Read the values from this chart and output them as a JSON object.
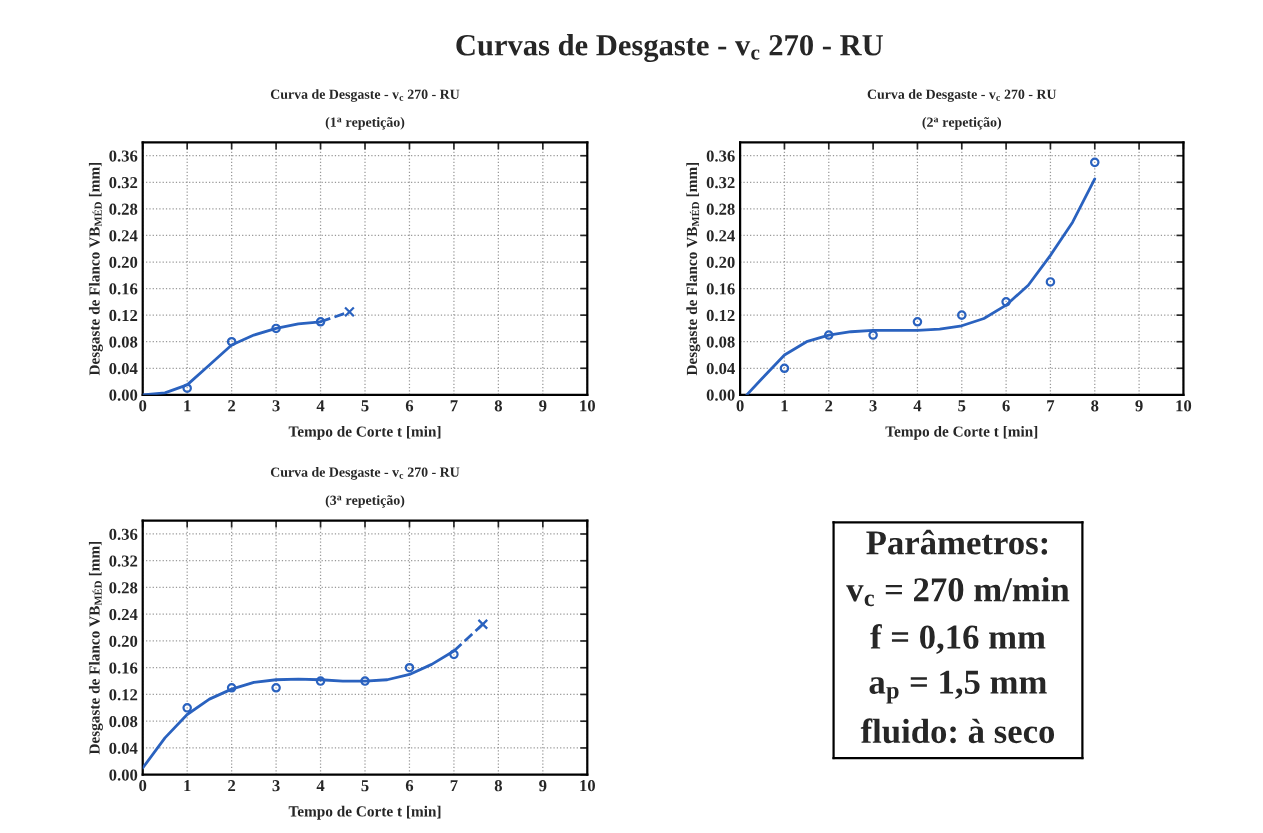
{
  "chart_data": [
    {
      "type": "scatter",
      "title": "Curva de Desgaste - v$_{c}$ 270 - RU",
      "subtitle": "(1$^{a}$ repetição)",
      "xlabel": "Tempo de Corte t [min]",
      "ylabel": "Desgaste de Flanco VB$_{MÉD}$ [mm]",
      "annotations": [
        "Curvas de Desgaste - v$_{c}$ 270 - RU"
      ],
      "xlim": [
        0,
        10
      ],
      "ylim": [
        0,
        0.38
      ],
      "xticks": [
        0,
        1,
        2,
        3,
        4,
        5,
        6,
        7,
        8,
        9,
        10
      ],
      "yticks": [
        {
          "value": 0,
          "label": "0.00"
        },
        {
          "value": 0.04,
          "label": "0.04"
        },
        {
          "value": 0.08,
          "label": "0.08"
        },
        {
          "value": 0.12,
          "label": "0.12"
        },
        {
          "value": 0.16,
          "label": "0.16"
        },
        {
          "value": 0.2,
          "label": "0.20"
        },
        {
          "value": 0.24,
          "label": "0.24"
        },
        {
          "value": 0.28,
          "label": "0.28"
        },
        {
          "value": 0.32,
          "label": "0.32"
        },
        {
          "value": 0.36,
          "label": "0.36"
        }
      ],
      "grid": true,
      "series": [
        {
          "type": "scatter",
          "color": "#2a62bf",
          "marker": "circle",
          "x": [
            1,
            2,
            3,
            4
          ],
          "values": [
            0.01,
            0.08,
            0.1,
            0.11
          ]
        },
        {
          "type": "line",
          "color": "#2a62bf",
          "marker": "none",
          "line_style": "solid",
          "x": [
            0,
            0.5,
            1,
            1.5,
            2,
            2.5,
            3,
            3.5,
            4
          ],
          "values": [
            0,
            0.003,
            0.015,
            0.045,
            0.075,
            0.09,
            0.1,
            0.107,
            0.11
          ]
        },
        {
          "type": "line",
          "color": "#2a62bf",
          "marker": "none",
          "line_style": "dashed",
          "x": [
            4,
            4.65
          ],
          "values": [
            0.11,
            0.125
          ]
        },
        {
          "type": "scatter",
          "color": "#2a62bf",
          "marker": "cross",
          "x": [
            4.65
          ],
          "values": [
            0.125
          ]
        }
      ]
    },
    {
      "type": "scatter",
      "title": "Curva de Desgaste - v$_{c}$ 270 - RU",
      "subtitle": "(2$^{a}$ repetição)",
      "xlabel": "Tempo de Corte t [min]",
      "ylabel": "Desgaste de Flanco VB$_{MÉD}$ [mm]",
      "xlim": [
        0,
        10
      ],
      "ylim": [
        0,
        0.38
      ],
      "xticks": [
        0,
        1,
        2,
        3,
        4,
        5,
        6,
        7,
        8,
        9,
        10
      ],
      "yticks": [
        {
          "value": 0,
          "label": "0.00"
        },
        {
          "value": 0.04,
          "label": "0.04"
        },
        {
          "value": 0.08,
          "label": "0.08"
        },
        {
          "value": 0.12,
          "label": "0.12"
        },
        {
          "value": 0.16,
          "label": "0.16"
        },
        {
          "value": 0.2,
          "label": "0.20"
        },
        {
          "value": 0.24,
          "label": "0.24"
        },
        {
          "value": 0.28,
          "label": "0.28"
        },
        {
          "value": 0.32,
          "label": "0.32"
        },
        {
          "value": 0.36,
          "label": "0.36"
        }
      ],
      "grid": true,
      "series": [
        {
          "type": "scatter",
          "color": "#2a62bf",
          "marker": "circle",
          "x": [
            1,
            2,
            3,
            4,
            5,
            6,
            7,
            8
          ],
          "values": [
            0.04,
            0.09,
            0.09,
            0.11,
            0.12,
            0.14,
            0.17,
            0.35
          ]
        },
        {
          "type": "line",
          "color": "#2a62bf",
          "marker": "none",
          "line_style": "solid",
          "x": [
            0.15,
            0.5,
            1,
            1.5,
            2,
            2.5,
            3,
            3.5,
            4,
            4.5,
            5,
            5.5,
            6,
            6.5,
            7,
            7.5,
            8
          ],
          "values": [
            0,
            0.025,
            0.06,
            0.08,
            0.09,
            0.095,
            0.097,
            0.097,
            0.097,
            0.099,
            0.104,
            0.115,
            0.135,
            0.165,
            0.21,
            0.26,
            0.325
          ]
        }
      ]
    },
    {
      "type": "scatter",
      "title": "Curva de Desgaste - v$_{c}$ 270 - RU",
      "subtitle": "(3$^{a}$ repetição)",
      "xlabel": "Tempo de Corte t [min]",
      "ylabel": "Desgaste de Flanco VB$_{MÉD}$ [mm]",
      "xlim": [
        0,
        10
      ],
      "ylim": [
        0,
        0.38
      ],
      "xticks": [
        0,
        1,
        2,
        3,
        4,
        5,
        6,
        7,
        8,
        9,
        10
      ],
      "yticks": [
        {
          "value": 0,
          "label": "0.00"
        },
        {
          "value": 0.04,
          "label": "0.04"
        },
        {
          "value": 0.08,
          "label": "0.08"
        },
        {
          "value": 0.12,
          "label": "0.12"
        },
        {
          "value": 0.16,
          "label": "0.16"
        },
        {
          "value": 0.2,
          "label": "0.20"
        },
        {
          "value": 0.24,
          "label": "0.24"
        },
        {
          "value": 0.28,
          "label": "0.28"
        },
        {
          "value": 0.32,
          "label": "0.32"
        },
        {
          "value": 0.36,
          "label": "0.36"
        }
      ],
      "grid": true,
      "series": [
        {
          "type": "scatter",
          "color": "#2a62bf",
          "marker": "circle",
          "x": [
            1,
            2,
            3,
            4,
            5,
            6,
            7
          ],
          "values": [
            0.1,
            0.13,
            0.13,
            0.14,
            0.14,
            0.16,
            0.18
          ]
        },
        {
          "type": "line",
          "color": "#2a62bf",
          "marker": "none",
          "line_style": "solid",
          "x": [
            0,
            0.5,
            1,
            1.5,
            2,
            2.5,
            3,
            3.5,
            4,
            4.5,
            5,
            5.5,
            6,
            6.5,
            7
          ],
          "values": [
            0.01,
            0.055,
            0.09,
            0.113,
            0.128,
            0.138,
            0.142,
            0.143,
            0.142,
            0.14,
            0.14,
            0.142,
            0.15,
            0.165,
            0.185
          ]
        },
        {
          "type": "line",
          "color": "#2a62bf",
          "marker": "none",
          "line_style": "dashed",
          "x": [
            7,
            7.65
          ],
          "values": [
            0.185,
            0.225
          ]
        },
        {
          "type": "scatter",
          "color": "#2a62bf",
          "marker": "cross",
          "x": [
            7.65
          ],
          "values": [
            0.225
          ]
        }
      ]
    },
    {
      "type": "other",
      "title": "Parâmetros:",
      "annotations": [
        "v$_{c}$ = 270 m/min",
        "f = 0,16 mm",
        "a$_{p}$ = 1,5 mm",
        "fluido: à seco"
      ]
    }
  ]
}
